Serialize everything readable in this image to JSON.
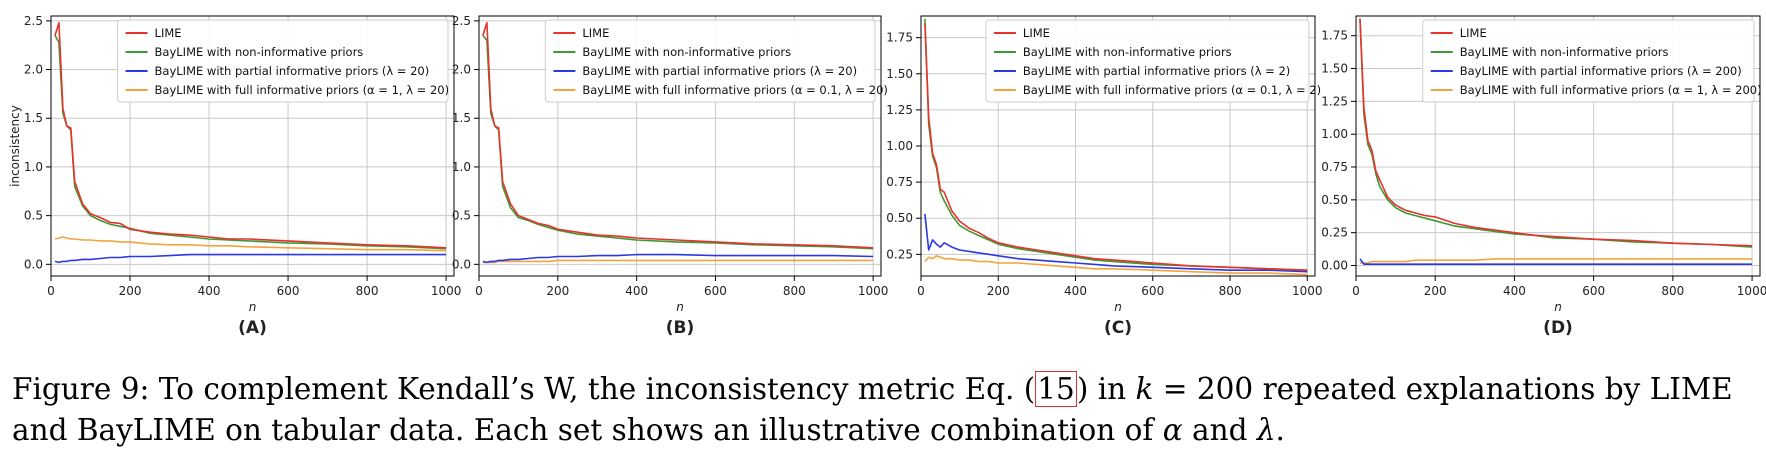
{
  "legend_labels": {
    "lime": "LIME",
    "noninf": "BayLIME with non-informative priors"
  },
  "colors": {
    "lime": "#e8322b",
    "noninf": "#3c9a35",
    "partial": "#2a38e8",
    "full": "#f5a43d"
  },
  "chart_data": [
    {
      "type": "line",
      "panel": "(A)",
      "xlabel": "n",
      "ylabel": "inconsistency",
      "xlim": [
        0,
        1020
      ],
      "ylim": [
        -0.12,
        2.55
      ],
      "xticks": [
        0,
        200,
        400,
        600,
        800,
        1000
      ],
      "yticks": [
        0.0,
        0.5,
        1.0,
        1.5,
        2.0,
        2.5
      ],
      "ytick_labels": [
        "0.0",
        "0.5",
        "1.0",
        "1.5",
        "2.0",
        "2.5"
      ],
      "grid": true,
      "legend": "top-right",
      "partial_label": "BayLIME with partial informative priors (λ = 20)",
      "full_label": "BayLIME with full informative priors (α = 1, λ = 20)",
      "x": [
        10,
        20,
        30,
        40,
        50,
        60,
        80,
        100,
        125,
        150,
        175,
        200,
        250,
        300,
        350,
        400,
        450,
        500,
        600,
        700,
        800,
        900,
        1000
      ],
      "series": [
        {
          "key": "lime",
          "values": [
            2.35,
            2.48,
            1.6,
            1.42,
            1.4,
            0.85,
            0.62,
            0.52,
            0.48,
            0.43,
            0.42,
            0.36,
            0.33,
            0.31,
            0.3,
            0.28,
            0.26,
            0.26,
            0.24,
            0.22,
            0.2,
            0.19,
            0.17
          ]
        },
        {
          "key": "noninf",
          "values": [
            2.35,
            2.28,
            1.55,
            1.42,
            1.38,
            0.8,
            0.6,
            0.5,
            0.45,
            0.41,
            0.39,
            0.37,
            0.32,
            0.3,
            0.28,
            0.26,
            0.25,
            0.24,
            0.22,
            0.21,
            0.19,
            0.18,
            0.16
          ]
        },
        {
          "key": "partial",
          "values": [
            0.03,
            0.02,
            0.03,
            0.03,
            0.04,
            0.04,
            0.05,
            0.05,
            0.06,
            0.07,
            0.07,
            0.08,
            0.08,
            0.09,
            0.1,
            0.1,
            0.1,
            0.1,
            0.1,
            0.1,
            0.1,
            0.1,
            0.1
          ]
        },
        {
          "key": "full",
          "values": [
            0.26,
            0.27,
            0.28,
            0.27,
            0.26,
            0.26,
            0.25,
            0.25,
            0.24,
            0.24,
            0.23,
            0.23,
            0.21,
            0.2,
            0.2,
            0.19,
            0.19,
            0.18,
            0.17,
            0.16,
            0.15,
            0.15,
            0.14
          ]
        }
      ]
    },
    {
      "type": "line",
      "panel": "(B)",
      "xlabel": "n",
      "ylabel": "",
      "xlim": [
        0,
        1020
      ],
      "ylim": [
        -0.12,
        2.55
      ],
      "xticks": [
        0,
        200,
        400,
        600,
        800,
        1000
      ],
      "yticks": [
        0.0,
        0.5,
        1.0,
        1.5,
        2.0,
        2.5
      ],
      "ytick_labels": [
        "0.0",
        "0.5",
        "1.0",
        "1.5",
        "2.0",
        "2.5"
      ],
      "grid": true,
      "legend": "top-right",
      "partial_label": "BayLIME with partial informative priors (λ = 20)",
      "full_label": "BayLIME with full informative priors (α = 0.1, λ = 20)",
      "x": [
        10,
        20,
        30,
        40,
        50,
        60,
        80,
        100,
        125,
        150,
        175,
        200,
        250,
        300,
        350,
        400,
        450,
        500,
        600,
        700,
        800,
        900,
        1000
      ],
      "series": [
        {
          "key": "lime",
          "values": [
            2.35,
            2.48,
            1.6,
            1.42,
            1.4,
            0.85,
            0.62,
            0.5,
            0.46,
            0.42,
            0.4,
            0.36,
            0.33,
            0.3,
            0.29,
            0.27,
            0.26,
            0.25,
            0.23,
            0.21,
            0.2,
            0.19,
            0.17
          ]
        },
        {
          "key": "noninf",
          "values": [
            2.35,
            2.3,
            1.55,
            1.42,
            1.38,
            0.8,
            0.58,
            0.48,
            0.45,
            0.41,
            0.38,
            0.35,
            0.31,
            0.29,
            0.27,
            0.25,
            0.24,
            0.23,
            0.22,
            0.2,
            0.19,
            0.18,
            0.16
          ]
        },
        {
          "key": "partial",
          "values": [
            0.03,
            0.02,
            0.03,
            0.03,
            0.04,
            0.04,
            0.05,
            0.05,
            0.06,
            0.07,
            0.07,
            0.08,
            0.08,
            0.09,
            0.09,
            0.1,
            0.1,
            0.1,
            0.09,
            0.09,
            0.09,
            0.09,
            0.08
          ]
        },
        {
          "key": "full",
          "values": [
            0.02,
            0.02,
            0.02,
            0.02,
            0.03,
            0.03,
            0.03,
            0.03,
            0.03,
            0.03,
            0.03,
            0.04,
            0.04,
            0.04,
            0.04,
            0.04,
            0.04,
            0.04,
            0.04,
            0.04,
            0.04,
            0.04,
            0.04
          ]
        }
      ]
    },
    {
      "type": "line",
      "panel": "(C)",
      "xlabel": "n",
      "ylabel": "",
      "xlim": [
        0,
        1020
      ],
      "ylim": [
        0.1,
        1.9
      ],
      "xticks": [
        0,
        200,
        400,
        600,
        800,
        1000
      ],
      "yticks": [
        0.25,
        0.5,
        0.75,
        1.0,
        1.25,
        1.5,
        1.75
      ],
      "ytick_labels": [
        "0.25",
        "0.50",
        "0.75",
        "1.00",
        "1.25",
        "1.50",
        "1.75"
      ],
      "grid": true,
      "legend": "top-right",
      "partial_label": "BayLIME with partial informative priors (λ = 2)",
      "full_label": "BayLIME with full informative priors (α = 0.1, λ = 2)",
      "x": [
        10,
        20,
        30,
        40,
        50,
        60,
        80,
        100,
        125,
        150,
        175,
        200,
        250,
        300,
        350,
        400,
        450,
        500,
        600,
        700,
        800,
        900,
        1000
      ],
      "series": [
        {
          "key": "lime",
          "values": [
            1.85,
            1.2,
            0.95,
            0.87,
            0.7,
            0.68,
            0.55,
            0.48,
            0.43,
            0.4,
            0.36,
            0.33,
            0.3,
            0.28,
            0.26,
            0.24,
            0.22,
            0.21,
            0.19,
            0.17,
            0.16,
            0.15,
            0.14
          ]
        },
        {
          "key": "noninf",
          "values": [
            1.88,
            1.15,
            0.93,
            0.85,
            0.68,
            0.62,
            0.52,
            0.45,
            0.41,
            0.38,
            0.35,
            0.32,
            0.29,
            0.27,
            0.25,
            0.23,
            0.21,
            0.2,
            0.18,
            0.17,
            0.16,
            0.15,
            0.14
          ]
        },
        {
          "key": "partial",
          "values": [
            0.53,
            0.28,
            0.35,
            0.32,
            0.3,
            0.33,
            0.3,
            0.28,
            0.27,
            0.26,
            0.25,
            0.24,
            0.22,
            0.21,
            0.2,
            0.19,
            0.18,
            0.17,
            0.16,
            0.15,
            0.14,
            0.14,
            0.13
          ]
        },
        {
          "key": "full",
          "values": [
            0.2,
            0.23,
            0.22,
            0.24,
            0.23,
            0.22,
            0.22,
            0.21,
            0.21,
            0.2,
            0.2,
            0.19,
            0.19,
            0.18,
            0.17,
            0.16,
            0.15,
            0.15,
            0.14,
            0.13,
            0.12,
            0.12,
            0.11
          ]
        }
      ]
    },
    {
      "type": "line",
      "panel": "(D)",
      "xlabel": "n",
      "ylabel": "",
      "xlim": [
        0,
        1020
      ],
      "ylim": [
        -0.08,
        1.9
      ],
      "xticks": [
        0,
        200,
        400,
        600,
        800,
        1000
      ],
      "yticks": [
        0.0,
        0.25,
        0.5,
        0.75,
        1.0,
        1.25,
        1.5,
        1.75
      ],
      "ytick_labels": [
        "0.00",
        "0.25",
        "0.50",
        "0.75",
        "1.00",
        "1.25",
        "1.50",
        "1.75"
      ],
      "grid": true,
      "legend": "top-right",
      "partial_label": "BayLIME with partial informative priors (λ = 200)",
      "full_label": "BayLIME with full informative priors (α = 1, λ = 200)",
      "x": [
        10,
        20,
        30,
        40,
        50,
        60,
        80,
        100,
        125,
        150,
        175,
        200,
        250,
        300,
        350,
        400,
        450,
        500,
        600,
        700,
        800,
        900,
        1000
      ],
      "series": [
        {
          "key": "lime",
          "values": [
            1.88,
            1.2,
            0.95,
            0.88,
            0.72,
            0.65,
            0.52,
            0.46,
            0.42,
            0.4,
            0.38,
            0.37,
            0.32,
            0.29,
            0.27,
            0.25,
            0.23,
            0.22,
            0.2,
            0.19,
            0.17,
            0.16,
            0.15
          ]
        },
        {
          "key": "noninf",
          "values": [
            1.88,
            1.15,
            0.92,
            0.85,
            0.7,
            0.6,
            0.5,
            0.44,
            0.4,
            0.38,
            0.36,
            0.34,
            0.3,
            0.28,
            0.26,
            0.24,
            0.23,
            0.21,
            0.2,
            0.18,
            0.17,
            0.16,
            0.14
          ]
        },
        {
          "key": "partial",
          "values": [
            0.05,
            0.01,
            0.01,
            0.01,
            0.01,
            0.01,
            0.01,
            0.01,
            0.01,
            0.01,
            0.01,
            0.01,
            0.01,
            0.01,
            0.01,
            0.01,
            0.01,
            0.01,
            0.01,
            0.01,
            0.01,
            0.01,
            0.01
          ]
        },
        {
          "key": "full",
          "values": [
            0.02,
            0.02,
            0.02,
            0.03,
            0.03,
            0.03,
            0.03,
            0.03,
            0.03,
            0.04,
            0.04,
            0.04,
            0.04,
            0.04,
            0.05,
            0.05,
            0.05,
            0.05,
            0.05,
            0.05,
            0.05,
            0.05,
            0.05
          ]
        }
      ]
    }
  ],
  "caption": {
    "prefix": "Figure 9: To complement Kendall’s W, the inconsistency metric Eq. (",
    "ref": "15",
    "middle": ") in ",
    "math_k": "k",
    "equals": " = 200 repeated explanations by LIME and BayLIME on tabular data. Each set shows an illustrative combination of ",
    "alpha": "α",
    "and": " and ",
    "lambda": "λ",
    "end": "."
  }
}
